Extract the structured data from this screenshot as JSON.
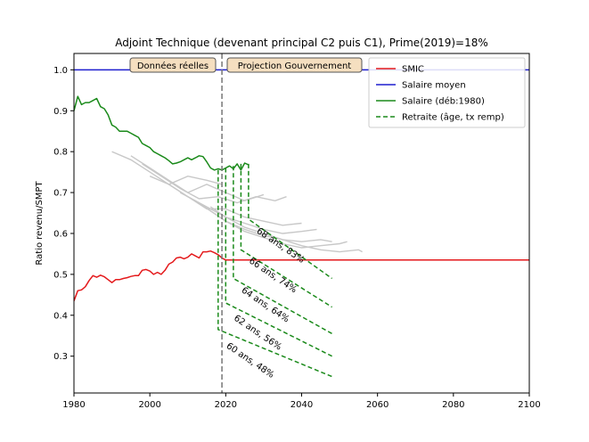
{
  "chart_data": {
    "type": "line",
    "title": "Adjoint Technique (devenant principal C2 puis C1), Prime(2019)=18%",
    "ylabel": "Ratio revenu/SMPT",
    "xlim": [
      1980,
      2100
    ],
    "ylim": [
      0.21,
      1.04
    ],
    "x_ticks": [
      "1980",
      "2000",
      "2020",
      "2040",
      "2060",
      "2080",
      "2100"
    ],
    "y_ticks": [
      "0.3",
      "0.4",
      "0.5",
      "0.6",
      "0.7",
      "0.8",
      "0.9",
      "1.0"
    ],
    "grid": false,
    "legend_position": "top-right",
    "divider_year": 2019,
    "annotations": [
      "Données réelles",
      "Projection Gouvernement"
    ],
    "colors": {
      "smic": "#e41a1c",
      "salaire_moyen": "#1f1fcf",
      "salaire": "#1a8a1a",
      "retraite": "#1a8a1a",
      "grey": "#c8c8c8",
      "divider": "#777777"
    },
    "series": [
      {
        "name": "SMIC",
        "key": "smic",
        "style": "solid",
        "x": [
          1980,
          1981,
          1982,
          1983,
          1984,
          1985,
          1986,
          1987,
          1988,
          1989,
          1990,
          1991,
          1992,
          1993,
          1994,
          1995,
          1996,
          1997,
          1998,
          1999,
          2000,
          2001,
          2002,
          2003,
          2004,
          2005,
          2006,
          2007,
          2008,
          2009,
          2010,
          2011,
          2012,
          2013,
          2014,
          2015,
          2016,
          2017,
          2018,
          2019,
          2020,
          2030,
          2040,
          2050,
          2060,
          2070,
          2080,
          2090,
          2100
        ],
        "y": [
          0.435,
          0.46,
          0.462,
          0.47,
          0.485,
          0.497,
          0.493,
          0.498,
          0.494,
          0.487,
          0.48,
          0.487,
          0.487,
          0.49,
          0.492,
          0.495,
          0.497,
          0.497,
          0.51,
          0.512,
          0.508,
          0.5,
          0.505,
          0.5,
          0.51,
          0.525,
          0.53,
          0.54,
          0.542,
          0.538,
          0.542,
          0.55,
          0.545,
          0.54,
          0.555,
          0.555,
          0.557,
          0.553,
          0.548,
          0.54,
          0.535,
          0.535,
          0.535,
          0.535,
          0.535,
          0.535,
          0.535,
          0.535,
          0.535
        ]
      },
      {
        "name": "Salaire moyen",
        "key": "salaire_moyen",
        "style": "solid",
        "x": [
          1980,
          2100
        ],
        "y": [
          1.0,
          1.0
        ]
      },
      {
        "name": "Salaire (déb:1980)",
        "key": "salaire",
        "style": "solid",
        "x": [
          1980,
          1981,
          1982,
          1983,
          1984,
          1985,
          1986,
          1987,
          1988,
          1989,
          1990,
          1991,
          1992,
          1993,
          1994,
          1995,
          1996,
          1997,
          1998,
          1999,
          2000,
          2001,
          2002,
          2003,
          2004,
          2005,
          2006,
          2007,
          2008,
          2009,
          2010,
          2011,
          2012,
          2013,
          2014,
          2015,
          2016,
          2017,
          2018,
          2019,
          2020,
          2021,
          2022,
          2023,
          2024,
          2025,
          2026
        ],
        "y": [
          0.9,
          0.935,
          0.915,
          0.92,
          0.92,
          0.925,
          0.93,
          0.91,
          0.905,
          0.89,
          0.865,
          0.86,
          0.85,
          0.85,
          0.85,
          0.845,
          0.84,
          0.835,
          0.82,
          0.815,
          0.81,
          0.8,
          0.795,
          0.79,
          0.785,
          0.778,
          0.77,
          0.772,
          0.775,
          0.78,
          0.785,
          0.78,
          0.785,
          0.79,
          0.788,
          0.775,
          0.76,
          0.755,
          0.758,
          0.755,
          0.76,
          0.765,
          0.758,
          0.77,
          0.755,
          0.772,
          0.768
        ]
      },
      {
        "name": "Retraite (âge, tx remp)",
        "key": "retraite",
        "style": "dashed",
        "x": [],
        "y": []
      }
    ],
    "retirement_curves": [
      {
        "label": "60 ans, 48%",
        "x": [
          2018,
          2018,
          2048
        ],
        "y": [
          0.755,
          0.365,
          0.25
        ],
        "label_year": 2020,
        "label_value": 0.322
      },
      {
        "label": "62 ans, 56%",
        "x": [
          2020,
          2020,
          2048
        ],
        "y": [
          0.76,
          0.43,
          0.3
        ],
        "label_year": 2022,
        "label_value": 0.39
      },
      {
        "label": "64 ans, 64%",
        "x": [
          2022,
          2022,
          2048
        ],
        "y": [
          0.765,
          0.49,
          0.355
        ],
        "label_year": 2024,
        "label_value": 0.458
      },
      {
        "label": "66 ans, 74%",
        "x": [
          2024,
          2024,
          2048
        ],
        "y": [
          0.77,
          0.56,
          0.42
        ],
        "label_year": 2026,
        "label_value": 0.53
      },
      {
        "label": "68 ans, 83%",
        "x": [
          2026,
          2026,
          2048
        ],
        "y": [
          0.77,
          0.635,
          0.49
        ],
        "label_year": 2028,
        "label_value": 0.603
      }
    ],
    "grey_series": [
      {
        "x": [
          1990,
          1995,
          2000,
          2005,
          2010,
          2015,
          2019
        ],
        "y": [
          0.8,
          0.78,
          0.75,
          0.72,
          0.74,
          0.73,
          0.72
        ]
      },
      {
        "x": [
          1995,
          2000,
          2005,
          2010,
          2015,
          2020,
          2025,
          2030
        ],
        "y": [
          0.79,
          0.76,
          0.73,
          0.7,
          0.72,
          0.7,
          0.68,
          0.695
        ]
      },
      {
        "x": [
          1998,
          2003,
          2008,
          2013,
          2018,
          2023,
          2028,
          2033,
          2036
        ],
        "y": [
          0.77,
          0.74,
          0.71,
          0.685,
          0.69,
          0.675,
          0.69,
          0.68,
          0.69
        ]
      },
      {
        "x": [
          2000,
          2005,
          2010,
          2015,
          2020,
          2025,
          2030,
          2035,
          2040
        ],
        "y": [
          0.74,
          0.72,
          0.69,
          0.66,
          0.66,
          0.64,
          0.63,
          0.62,
          0.625
        ]
      },
      {
        "x": [
          2005,
          2010,
          2015,
          2020,
          2025,
          2030,
          2035,
          2040,
          2044
        ],
        "y": [
          0.72,
          0.69,
          0.665,
          0.64,
          0.625,
          0.61,
          0.6,
          0.605,
          0.61
        ]
      },
      {
        "x": [
          2008,
          2012,
          2016,
          2020,
          2025,
          2030,
          2035,
          2040,
          2045,
          2048
        ],
        "y": [
          0.7,
          0.68,
          0.655,
          0.63,
          0.61,
          0.595,
          0.585,
          0.58,
          0.585,
          0.58
        ]
      },
      {
        "x": [
          2012,
          2016,
          2020,
          2025,
          2030,
          2035,
          2040,
          2045,
          2050,
          2052
        ],
        "y": [
          0.68,
          0.655,
          0.63,
          0.605,
          0.59,
          0.575,
          0.565,
          0.57,
          0.575,
          0.58
        ]
      },
      {
        "x": [
          2016,
          2020,
          2025,
          2030,
          2035,
          2040,
          2045,
          2050,
          2055,
          2056
        ],
        "y": [
          0.665,
          0.64,
          0.615,
          0.6,
          0.585,
          0.57,
          0.56,
          0.555,
          0.56,
          0.555
        ]
      }
    ]
  }
}
